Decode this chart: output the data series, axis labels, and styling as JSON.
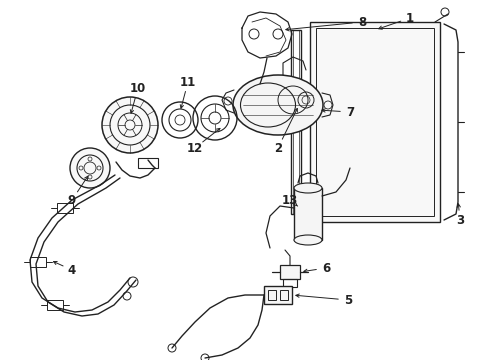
{
  "background_color": "#ffffff",
  "line_color": "#222222",
  "fig_width": 4.89,
  "fig_height": 3.6,
  "dpi": 100,
  "label_fontsize": 8.5
}
